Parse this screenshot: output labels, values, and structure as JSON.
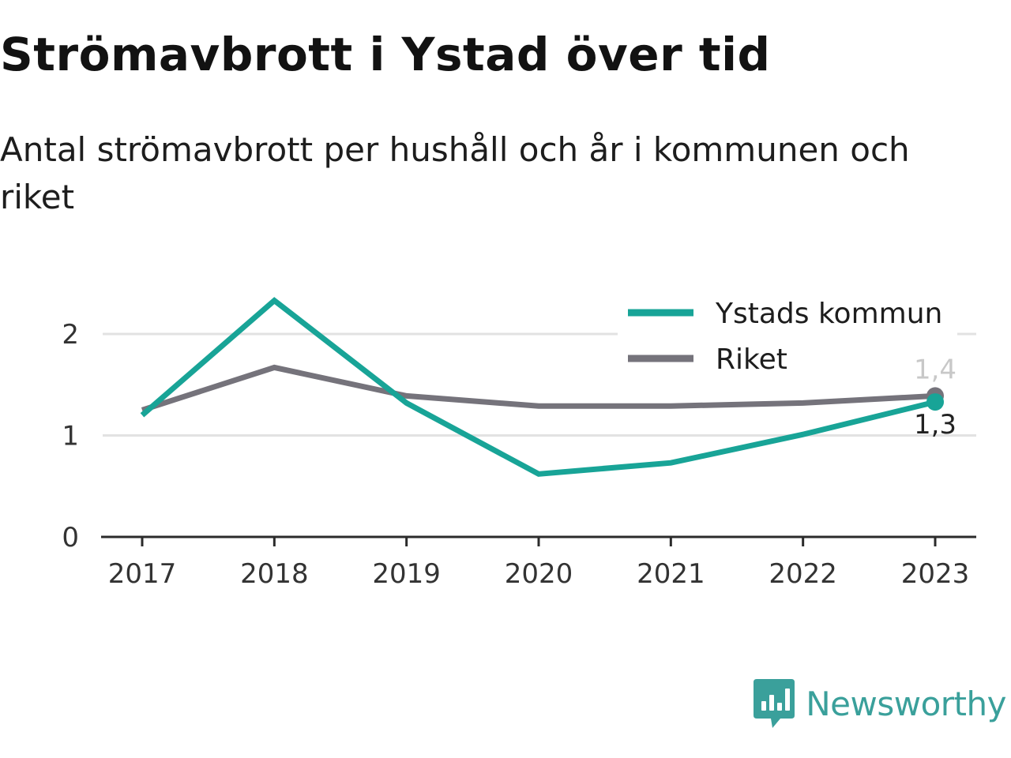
{
  "header": {
    "title": "Strömavbrott i Ystad över tid",
    "subtitle": "Antal strömavbrott per hushåll och år i kommunen och riket"
  },
  "chart_data": {
    "type": "line",
    "categories": [
      "2017",
      "2018",
      "2019",
      "2020",
      "2021",
      "2022",
      "2023"
    ],
    "ylim": [
      0,
      2.5
    ],
    "yticks": [
      0,
      1,
      2
    ],
    "grid": true,
    "legend_position": "top-right",
    "series": [
      {
        "name": "Ystads kommun",
        "color": "#18a497",
        "values": [
          1.2,
          2.33,
          1.32,
          0.62,
          0.73,
          1.01,
          1.33
        ],
        "end_label": "1,3",
        "end_label_color": "#222222"
      },
      {
        "name": "Riket",
        "color": "#75737b",
        "values": [
          1.25,
          1.67,
          1.39,
          1.29,
          1.29,
          1.32,
          1.39
        ],
        "end_label": "1,4",
        "end_label_color": "#c8c8c8"
      }
    ]
  },
  "brand": {
    "name": "Newsworthy",
    "icon": "newsworthy-logo-icon",
    "color": "#3aa09b"
  }
}
